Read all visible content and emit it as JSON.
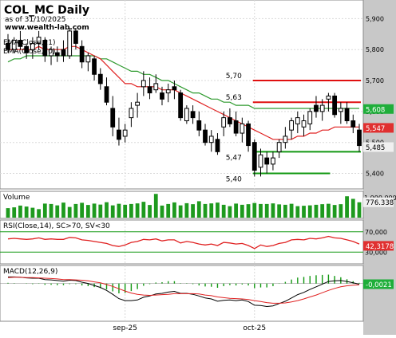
{
  "header": {
    "title": "COL_MC Daily",
    "date": "as of 31/10/2025",
    "source": "www.wealth-lab.com"
  },
  "colors": {
    "ema21": "#e02020",
    "ema70": "#2e9a2e",
    "resistance": "#e01010",
    "support": "#129812",
    "volume": "#1e9a1e",
    "last_price_tag": "#f0f0f0",
    "ema21_tag": "#e03030",
    "ema70_tag": "#1fae3a",
    "axis_panel": "#c8c8c8",
    "macd_tag": "#1fae3a",
    "rsi_tag": "#e03030",
    "volume_tag": "#f0f0f0"
  },
  "chart_data": [
    {
      "type": "candlestick",
      "panel": "price",
      "title": "COL_MC Daily",
      "subtitle": "as of 31/10/2025",
      "y_ticks": [
        "5,900",
        "5,800",
        "5,700",
        "5,600",
        "5,500",
        "5,400"
      ],
      "ylim": [
        5.355,
        5.955
      ],
      "x_ticks": [
        "sep-25",
        "oct-25"
      ],
      "x_tick_index": [
        19,
        40
      ],
      "grid": true,
      "series_legend": [
        "EMA(Close,21)",
        "EMA(Close,70)"
      ],
      "ohlc": [
        [
          5.82,
          5.85,
          5.79,
          5.8
        ],
        [
          5.8,
          5.84,
          5.79,
          5.83
        ],
        [
          5.83,
          5.86,
          5.8,
          5.81
        ],
        [
          5.81,
          5.82,
          5.77,
          5.79
        ],
        [
          5.8,
          5.84,
          5.77,
          5.82
        ],
        [
          5.82,
          5.86,
          5.8,
          5.84
        ],
        [
          5.83,
          5.84,
          5.76,
          5.78
        ],
        [
          5.78,
          5.81,
          5.75,
          5.8
        ],
        [
          5.79,
          5.81,
          5.76,
          5.78
        ],
        [
          5.8,
          5.83,
          5.76,
          5.78
        ],
        [
          5.78,
          5.87,
          5.77,
          5.86
        ],
        [
          5.86,
          5.87,
          5.8,
          5.82
        ],
        [
          5.81,
          5.83,
          5.74,
          5.76
        ],
        [
          5.76,
          5.79,
          5.73,
          5.78
        ],
        [
          5.77,
          5.78,
          5.7,
          5.72
        ],
        [
          5.72,
          5.74,
          5.67,
          5.69
        ],
        [
          5.68,
          5.71,
          5.62,
          5.63
        ],
        [
          5.61,
          5.65,
          5.52,
          5.55
        ],
        [
          5.54,
          5.58,
          5.49,
          5.51
        ],
        [
          5.52,
          5.56,
          5.5,
          5.54
        ],
        [
          5.58,
          5.63,
          5.55,
          5.61
        ],
        [
          5.62,
          5.66,
          5.58,
          5.63
        ],
        [
          5.68,
          5.73,
          5.65,
          5.7
        ],
        [
          5.68,
          5.71,
          5.64,
          5.66
        ],
        [
          5.67,
          5.72,
          5.66,
          5.69
        ],
        [
          5.66,
          5.68,
          5.62,
          5.64
        ],
        [
          5.66,
          5.69,
          5.63,
          5.67
        ],
        [
          5.68,
          5.7,
          5.64,
          5.67
        ],
        [
          5.66,
          5.67,
          5.57,
          5.58
        ],
        [
          5.57,
          5.62,
          5.56,
          5.61
        ],
        [
          5.6,
          5.62,
          5.56,
          5.58
        ],
        [
          5.57,
          5.6,
          5.52,
          5.54
        ],
        [
          5.54,
          5.56,
          5.49,
          5.5
        ],
        [
          5.5,
          5.54,
          5.47,
          5.52
        ],
        [
          5.51,
          5.53,
          5.46,
          5.47
        ],
        [
          5.55,
          5.6,
          5.52,
          5.58
        ],
        [
          5.58,
          5.61,
          5.55,
          5.56
        ],
        [
          5.57,
          5.6,
          5.52,
          5.53
        ],
        [
          5.53,
          5.58,
          5.5,
          5.56
        ],
        [
          5.56,
          5.57,
          5.47,
          5.49
        ],
        [
          5.5,
          5.51,
          5.39,
          5.41
        ],
        [
          5.42,
          5.48,
          5.39,
          5.46
        ],
        [
          5.45,
          5.47,
          5.4,
          5.43
        ],
        [
          5.43,
          5.47,
          5.41,
          5.45
        ],
        [
          5.47,
          5.51,
          5.45,
          5.5
        ],
        [
          5.5,
          5.55,
          5.48,
          5.52
        ],
        [
          5.54,
          5.58,
          5.51,
          5.57
        ],
        [
          5.56,
          5.6,
          5.53,
          5.58
        ],
        [
          5.55,
          5.59,
          5.52,
          5.57
        ],
        [
          5.56,
          5.61,
          5.54,
          5.6
        ],
        [
          5.62,
          5.65,
          5.58,
          5.6
        ],
        [
          5.6,
          5.64,
          5.57,
          5.62
        ],
        [
          5.64,
          5.66,
          5.6,
          5.65
        ],
        [
          5.65,
          5.66,
          5.58,
          5.59
        ],
        [
          5.6,
          5.63,
          5.56,
          5.61
        ],
        [
          5.61,
          5.63,
          5.56,
          5.57
        ],
        [
          5.57,
          5.59,
          5.53,
          5.55
        ],
        [
          5.54,
          5.56,
          5.47,
          5.49
        ]
      ],
      "ema21": [
        5.8,
        5.8,
        5.8,
        5.8,
        5.8,
        5.81,
        5.8,
        5.8,
        5.8,
        5.8,
        5.81,
        5.81,
        5.8,
        5.79,
        5.78,
        5.77,
        5.75,
        5.73,
        5.71,
        5.69,
        5.69,
        5.68,
        5.68,
        5.68,
        5.68,
        5.67,
        5.67,
        5.67,
        5.66,
        5.65,
        5.64,
        5.63,
        5.62,
        5.61,
        5.6,
        5.59,
        5.58,
        5.57,
        5.56,
        5.55,
        5.54,
        5.53,
        5.52,
        5.51,
        5.51,
        5.51,
        5.51,
        5.52,
        5.52,
        5.53,
        5.53,
        5.54,
        5.54,
        5.55,
        5.55,
        5.55,
        5.55,
        5.55
      ],
      "ema70": [
        5.76,
        5.77,
        5.77,
        5.78,
        5.78,
        5.78,
        5.78,
        5.78,
        5.78,
        5.78,
        5.78,
        5.78,
        5.78,
        5.78,
        5.78,
        5.77,
        5.77,
        5.76,
        5.75,
        5.74,
        5.73,
        5.73,
        5.72,
        5.72,
        5.71,
        5.7,
        5.7,
        5.69,
        5.68,
        5.67,
        5.66,
        5.66,
        5.65,
        5.64,
        5.64,
        5.63,
        5.63,
        5.62,
        5.62,
        5.62,
        5.61,
        5.61,
        5.61,
        5.61,
        5.61,
        5.61,
        5.61,
        5.61,
        5.61,
        5.61,
        5.61,
        5.61,
        5.61,
        5.61,
        5.61,
        5.61,
        5.61,
        5.61
      ],
      "levels": [
        {
          "value": 5.7,
          "label": "5,70",
          "kind": "resistance",
          "start": 40,
          "end": 57
        },
        {
          "value": 5.63,
          "label": "5,63",
          "kind": "resistance",
          "start": 40,
          "end": 57
        },
        {
          "value": 5.47,
          "label": "5,47",
          "kind": "support",
          "start": 40,
          "end": 57
        },
        {
          "value": 5.4,
          "label": "5,40",
          "kind": "support",
          "start": 40,
          "end": 52
        }
      ],
      "last_values": {
        "ema70": "5,608",
        "ema21": "5,547",
        "close": "5,485"
      }
    },
    {
      "type": "bar",
      "panel": "volume",
      "title": "Volume",
      "y_ticks": [
        "1.000.000"
      ],
      "ylim": [
        0,
        1250000
      ],
      "last_value": "776.338",
      "values": [
        480000,
        520000,
        610000,
        560000,
        500000,
        430000,
        710000,
        690000,
        620000,
        760000,
        540000,
        690000,
        750000,
        640000,
        710000,
        660000,
        780000,
        620000,
        700000,
        650000,
        690000,
        720000,
        800000,
        640000,
        1200000,
        610000,
        690000,
        770000,
        620000,
        730000,
        680000,
        830000,
        690000,
        720000,
        760000,
        650000,
        580000,
        710000,
        650000,
        680000,
        740000,
        690000,
        690000,
        720000,
        670000,
        650000,
        700000,
        580000,
        600000,
        620000,
        650000,
        680000,
        700000,
        640000,
        680000,
        1080000,
        950000,
        776338
      ]
    },
    {
      "type": "line",
      "panel": "rsi",
      "title": "RSI(Close,14), SC>70, SV<30",
      "y_ticks": [
        "70,000",
        "30,000"
      ],
      "ylim": [
        10,
        90
      ],
      "thresholds": [
        70,
        30
      ],
      "last_value": "42,3178",
      "values": [
        56,
        57,
        56,
        55,
        56,
        58,
        55,
        56,
        55,
        55,
        59,
        58,
        54,
        53,
        51,
        49,
        47,
        43,
        41,
        44,
        49,
        51,
        55,
        54,
        56,
        52,
        54,
        54,
        48,
        51,
        49,
        46,
        44,
        46,
        43,
        49,
        48,
        46,
        47,
        43,
        37,
        44,
        41,
        43,
        47,
        49,
        54,
        55,
        54,
        57,
        56,
        58,
        61,
        58,
        57,
        54,
        51,
        46
      ]
    },
    {
      "type": "line",
      "panel": "macd",
      "title": "MACD(12,26,9)",
      "ylim": [
        -0.11,
        0.05
      ],
      "last_value": "-0,0021",
      "macd": [
        0.02,
        0.02,
        0.019,
        0.017,
        0.016,
        0.016,
        0.012,
        0.011,
        0.009,
        0.007,
        0.01,
        0.009,
        0.004,
        0.0,
        -0.006,
        -0.012,
        -0.021,
        -0.033,
        -0.046,
        -0.052,
        -0.052,
        -0.05,
        -0.042,
        -0.038,
        -0.032,
        -0.03,
        -0.026,
        -0.024,
        -0.03,
        -0.03,
        -0.033,
        -0.038,
        -0.044,
        -0.047,
        -0.054,
        -0.051,
        -0.05,
        -0.052,
        -0.05,
        -0.055,
        -0.066,
        -0.067,
        -0.07,
        -0.068,
        -0.061,
        -0.054,
        -0.044,
        -0.034,
        -0.027,
        -0.018,
        -0.01,
        -0.002,
        0.006,
        0.008,
        0.009,
        0.006,
        0.002,
        -0.0021
      ],
      "signal": [
        0.018,
        0.019,
        0.019,
        0.018,
        0.018,
        0.017,
        0.016,
        0.015,
        0.014,
        0.012,
        0.012,
        0.011,
        0.01,
        0.008,
        0.005,
        0.002,
        -0.003,
        -0.009,
        -0.016,
        -0.023,
        -0.029,
        -0.033,
        -0.035,
        -0.036,
        -0.035,
        -0.034,
        -0.033,
        -0.031,
        -0.031,
        -0.031,
        -0.031,
        -0.032,
        -0.035,
        -0.037,
        -0.041,
        -0.043,
        -0.045,
        -0.046,
        -0.047,
        -0.049,
        -0.052,
        -0.055,
        -0.058,
        -0.06,
        -0.06,
        -0.059,
        -0.056,
        -0.052,
        -0.047,
        -0.041,
        -0.035,
        -0.028,
        -0.021,
        -0.015,
        -0.01,
        -0.007,
        -0.005,
        -0.004
      ]
    }
  ]
}
